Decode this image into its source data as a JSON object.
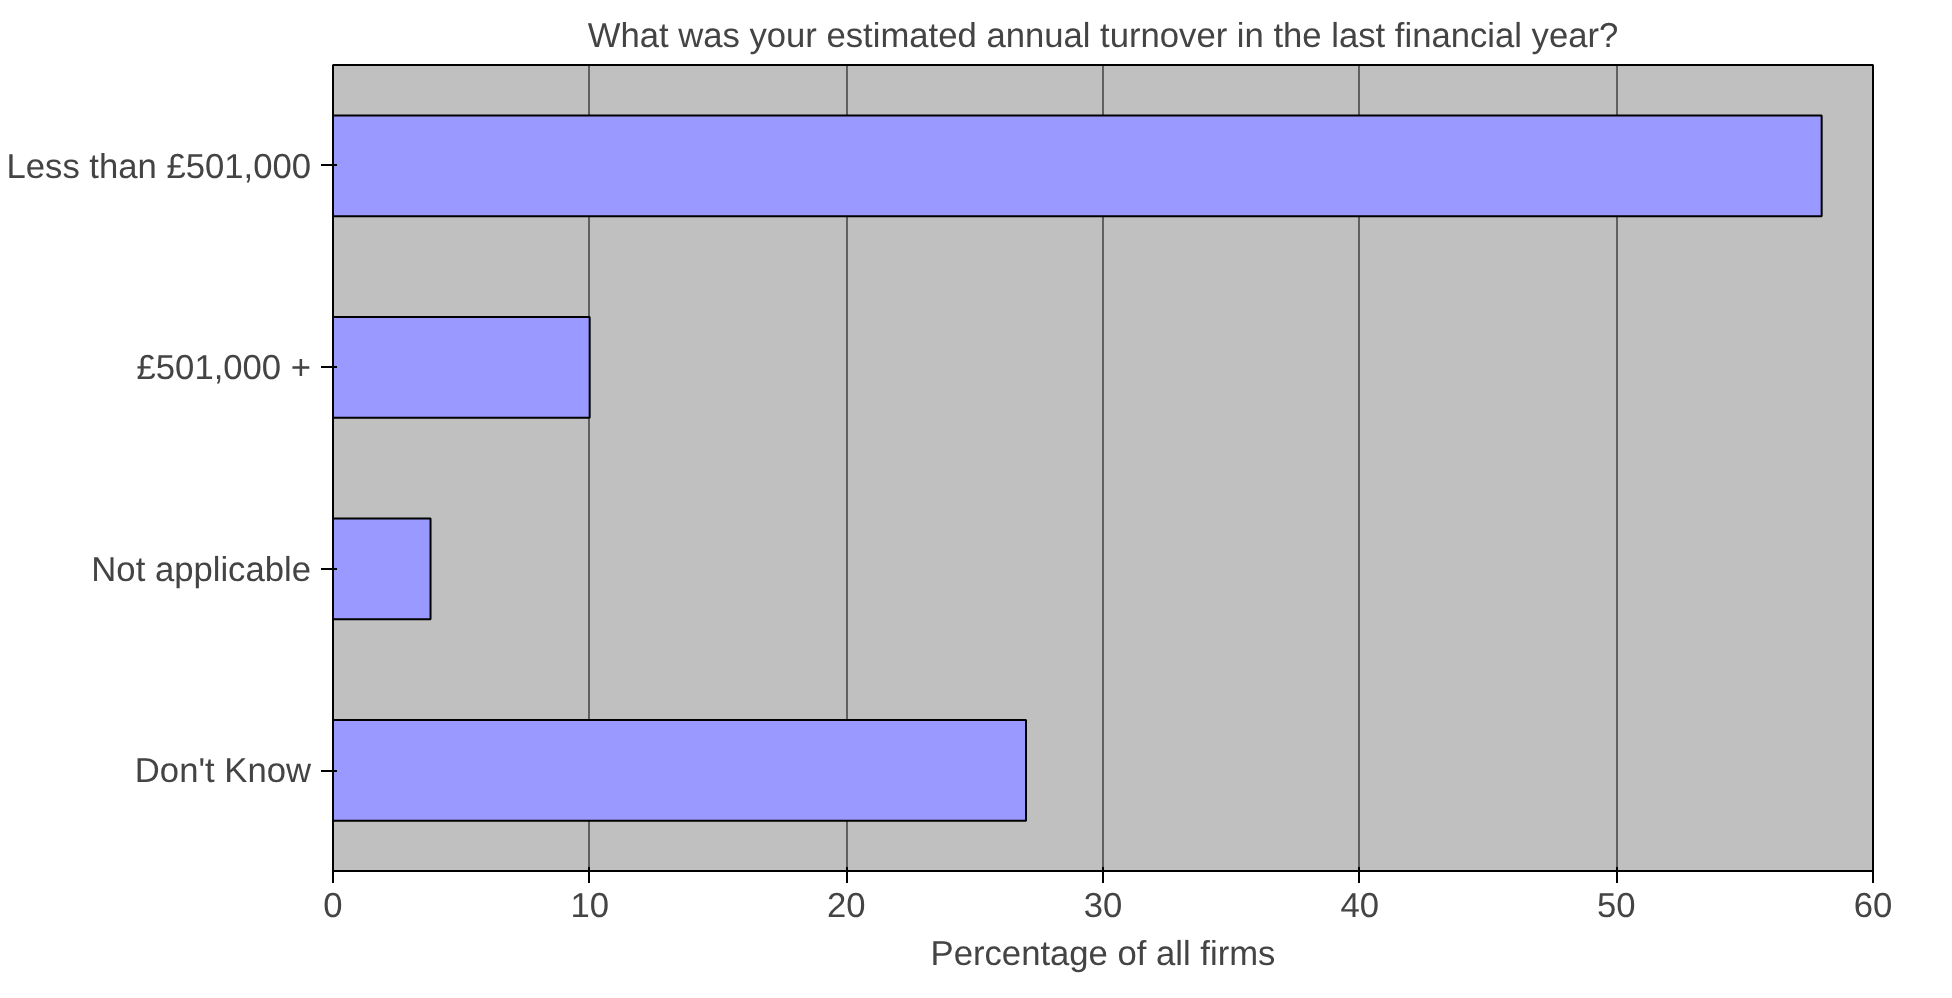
{
  "chart_data": {
    "type": "bar",
    "orientation": "horizontal",
    "title": "What was your estimated annual turnover in the last financial year?",
    "xlabel": "Percentage of all firms",
    "categories": [
      "Less than £501,000",
      "£501,000 +",
      "Not applicable",
      "Don't Know"
    ],
    "values": [
      58,
      10,
      3.8,
      27
    ],
    "color": "#9999ff",
    "xlim": [
      0,
      60
    ],
    "xticks": [
      0,
      10,
      20,
      30,
      40,
      50,
      60
    ],
    "grid": "x"
  }
}
